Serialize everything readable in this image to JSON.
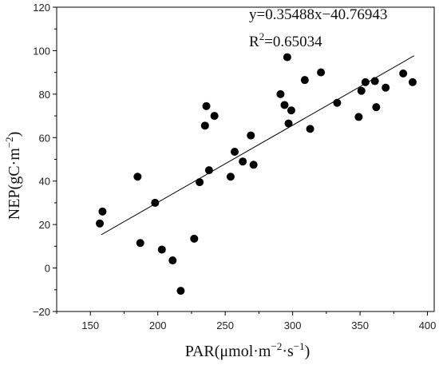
{
  "chart_data": {
    "type": "scatter",
    "xlabel": "PAR(μmol·m⁻²·s⁻¹)",
    "ylabel": "NEP(gC·m⁻²)",
    "xlim": [
      125,
      405
    ],
    "ylim": [
      -20,
      120
    ],
    "xticks": [
      150,
      200,
      250,
      300,
      350,
      400
    ],
    "yticks": [
      -20,
      0,
      20,
      40,
      60,
      80,
      100,
      120
    ],
    "grid": false,
    "equation": "y=0.35488x−40.76943",
    "r2_label": "R²=0.65034",
    "fit": {
      "slope": 0.35488,
      "intercept": -40.76943,
      "x_range": [
        158,
        390
      ]
    },
    "points": [
      {
        "x": 157,
        "y": 20.5
      },
      {
        "x": 159,
        "y": 26
      },
      {
        "x": 185,
        "y": 42
      },
      {
        "x": 187,
        "y": 11.5
      },
      {
        "x": 198,
        "y": 30
      },
      {
        "x": 203,
        "y": 8.5
      },
      {
        "x": 211,
        "y": 3.5
      },
      {
        "x": 217,
        "y": -10.5
      },
      {
        "x": 227,
        "y": 13.5
      },
      {
        "x": 231,
        "y": 39.5
      },
      {
        "x": 235,
        "y": 65.5
      },
      {
        "x": 236,
        "y": 74.5
      },
      {
        "x": 238,
        "y": 45
      },
      {
        "x": 242,
        "y": 70
      },
      {
        "x": 254,
        "y": 42
      },
      {
        "x": 257,
        "y": 53.5
      },
      {
        "x": 263,
        "y": 49
      },
      {
        "x": 269,
        "y": 61
      },
      {
        "x": 271,
        "y": 47.5
      },
      {
        "x": 291,
        "y": 80
      },
      {
        "x": 294,
        "y": 75
      },
      {
        "x": 296,
        "y": 97
      },
      {
        "x": 297,
        "y": 66.5
      },
      {
        "x": 299,
        "y": 72.5
      },
      {
        "x": 309,
        "y": 86.5
      },
      {
        "x": 313,
        "y": 64
      },
      {
        "x": 321,
        "y": 90
      },
      {
        "x": 333,
        "y": 76
      },
      {
        "x": 349,
        "y": 69.5
      },
      {
        "x": 351,
        "y": 81.5
      },
      {
        "x": 354,
        "y": 85.5
      },
      {
        "x": 361,
        "y": 86
      },
      {
        "x": 362,
        "y": 74
      },
      {
        "x": 369,
        "y": 83
      },
      {
        "x": 382,
        "y": 89.5
      },
      {
        "x": 389,
        "y": 85.5
      }
    ]
  }
}
